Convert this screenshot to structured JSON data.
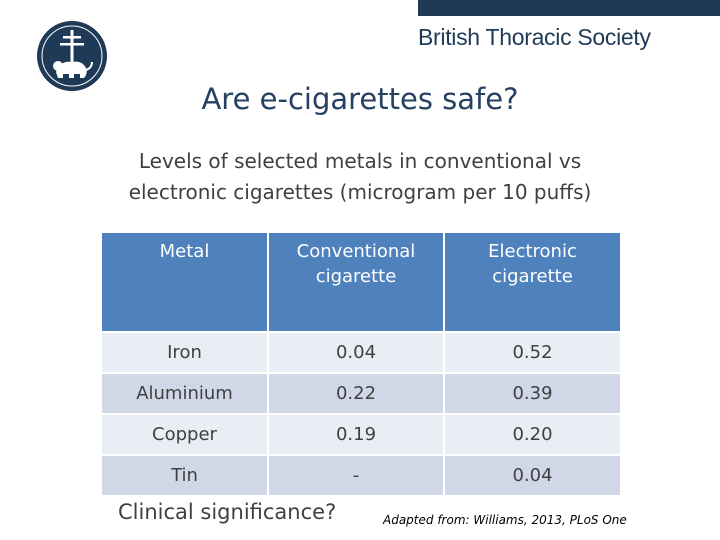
{
  "header": {
    "org_name": "British Thoracic Society",
    "logo_icon": "society-crest-icon",
    "band_color": "#1f3a56"
  },
  "slide": {
    "title": "Are e-cigarettes safe?",
    "subtitle_line1": "Levels of selected metals in conventional vs",
    "subtitle_line2": "electronic cigarettes (microgram per 10 puffs)"
  },
  "table": {
    "headers": {
      "metal": "Metal",
      "conventional_line1": "Conventional",
      "conventional_line2": "cigarette",
      "electronic_line1": "Electronic",
      "electronic_line2": "cigarette"
    },
    "rows": [
      {
        "metal": "Iron",
        "conventional": "0.04",
        "electronic": "0.52"
      },
      {
        "metal": "Aluminium",
        "conventional": "0.22",
        "electronic": "0.39"
      },
      {
        "metal": "Copper",
        "conventional": "0.19",
        "electronic": "0.20"
      },
      {
        "metal": "Tin",
        "conventional": "-",
        "electronic": "0.04"
      }
    ],
    "header_color": "#4f81bd",
    "row_colors": [
      "#e9edf4",
      "#d0d8e8"
    ]
  },
  "footer": {
    "question": "Clinical significance?",
    "citation": "Adapted from: Williams, 2013, PLoS One"
  }
}
